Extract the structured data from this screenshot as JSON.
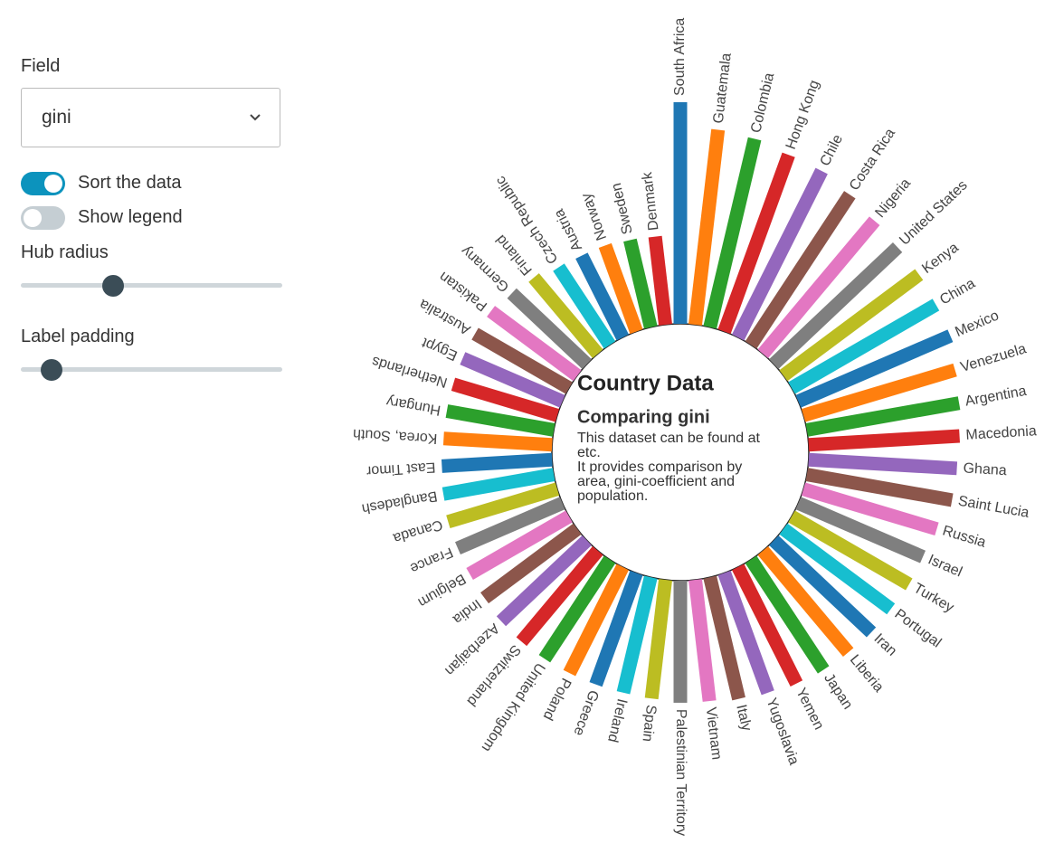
{
  "controls": {
    "field": {
      "label": "Field",
      "value": "gini"
    },
    "toggles": [
      {
        "label": "Sort the data",
        "on": true
      },
      {
        "label": "Show legend",
        "on": false
      }
    ],
    "sliders": [
      {
        "label": "Hub radius"
      },
      {
        "label": "Label padding"
      }
    ]
  },
  "chart_data": {
    "type": "radial-bar",
    "title": "Country Data",
    "subtitle": "Comparing gini",
    "description": [
      "This dataset can be found at",
      "etc.",
      "It provides comparison by",
      "area, gini-coefficient and",
      "population."
    ],
    "categories": [
      "South Africa",
      "Guatemala",
      "Colombia",
      "Hong Kong",
      "Chile",
      "Costa Rica",
      "Nigeria",
      "United States",
      "Kenya",
      "China",
      "Mexico",
      "Venezuela",
      "Argentina",
      "Macedonia",
      "Ghana",
      "Saint Lucia",
      "Russia",
      "Israel",
      "Turkey",
      "Portugal",
      "Iran",
      "Liberia",
      "Japan",
      "Yemen",
      "Yugoslavia",
      "Italy",
      "Vietnam",
      "Palestinian Territory",
      "Spain",
      "Ireland",
      "Greece",
      "Poland",
      "United Kingdom",
      "Switzerland",
      "Azerbaijan",
      "India",
      "Belgium",
      "France",
      "Canada",
      "Bangladesh",
      "East Timor",
      "Korea, South",
      "Hungary",
      "Netherlands",
      "Egypt",
      "Australia",
      "Pakistan",
      "Germany",
      "Finland",
      "Czech Republic",
      "Austria",
      "Norway",
      "Sweden",
      "Denmark"
    ],
    "values": [
      58.0,
      49.9,
      49.1,
      47.4,
      46.9,
      45.0,
      43.2,
      42.2,
      41.9,
      41.2,
      40.9,
      38.9,
      37.9,
      37.0,
      36.3,
      36.0,
      33.9,
      33.0,
      33.0,
      32.6,
      32.6,
      32.3,
      32.1,
      31.7,
      31.0,
      30.4,
      29.7,
      29.7,
      29.1,
      28.9,
      28.9,
      28.9,
      28.9,
      28.9,
      28.7,
      28.2,
      28.0,
      27.8,
      27.8,
      27.4,
      27.0,
      26.6,
      26.6,
      26.6,
      26.6,
      26.6,
      26.4,
      25.4,
      24.6,
      23.2,
      22.9,
      22.9,
      22.5,
      22.3
    ],
    "colors": [
      "#1f77b4",
      "#ff7f0e",
      "#2ca02c",
      "#d62728",
      "#9467bd",
      "#8c564b",
      "#e377c2",
      "#7f7f7f",
      "#bcbd22",
      "#17becf"
    ]
  }
}
